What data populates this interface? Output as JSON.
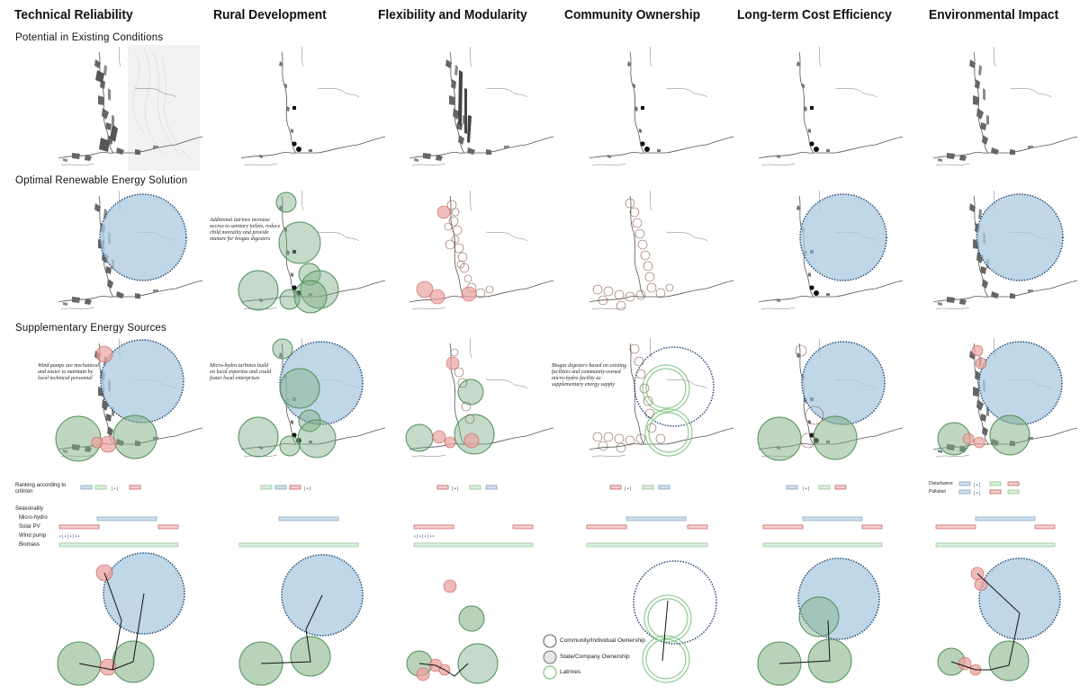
{
  "columns": [
    {
      "title": "Technical Reliability"
    },
    {
      "title": "Rural Development"
    },
    {
      "title": "Flexibility and Modularity"
    },
    {
      "title": "Community Ownership"
    },
    {
      "title": "Long-term Cost Efficiency"
    },
    {
      "title": "Environmental Impact"
    }
  ],
  "rows": {
    "existing": "Potential in Existing Conditions",
    "optimal": "Optimal Renewable Energy Solution",
    "supplementary": "Supplementary Energy Sources"
  },
  "notes": {
    "rural_optimal": "Additional latrines increase access to sanitary toilets, reduce child mortality and provide manure for biogas digesters",
    "tech_supp": "Wind pumps are mechanical and easier to maintain by local technical personnel",
    "rural_supp": "Micro-hydro turbines build on local expertise and could foster local enterprises",
    "community_supp": "Biogas digesters based on existing facilities and community-owned micro-hydro facility as supplementary energy supply"
  },
  "ranking": {
    "label": "Ranking according to critirion",
    "env_labels": [
      "Disturbance",
      "Pollution"
    ]
  },
  "seasonality": {
    "label": "Seasonality",
    "items": [
      "Micro-hydro",
      "Solar PV",
      "Wind pump",
      "Biomass"
    ]
  },
  "legend": {
    "items": [
      "Community/Individual Ownership",
      "State/Company Ownership",
      "Latrines"
    ]
  },
  "colors": {
    "hydro": "#a9c9dd",
    "hydro_stroke": "#2a4a7a",
    "biomass": "#7fae84",
    "biomass_stroke": "#4f8f58",
    "solar": "#e9a2a0",
    "solar_stroke": "#c85a5a"
  }
}
